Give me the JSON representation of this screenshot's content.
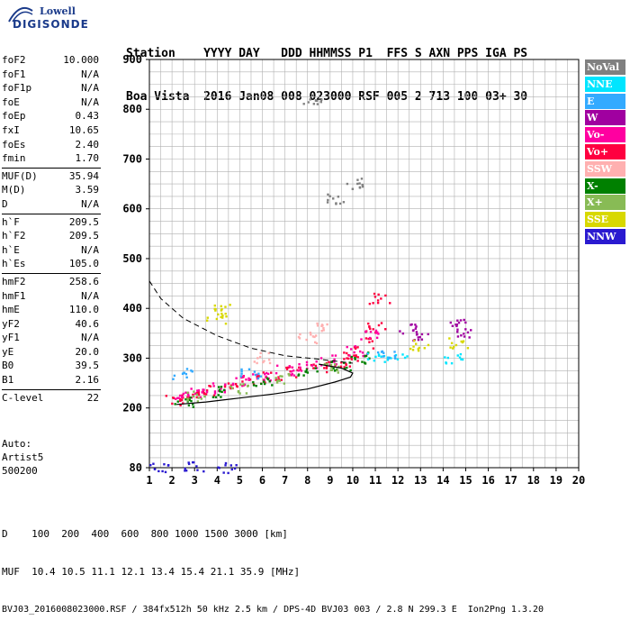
{
  "logo": {
    "line1": "Lowell",
    "line2": "DIGISONDE"
  },
  "header": {
    "labels": [
      "Station",
      "YYYY",
      "DAY",
      "DDD",
      "HHMMSS",
      "P1",
      "FFS",
      "S",
      "AXN",
      "PPS",
      "IGA",
      "PS"
    ],
    "values": [
      "Boa Vista",
      "2016",
      "Jan08",
      "008",
      "023000",
      "RSF",
      "005",
      "2",
      "713",
      "100",
      "03+",
      "30"
    ],
    "line1": "Station    YYYY DAY   DDD HHMMSS P1  FFS S AXN PPS IGA PS",
    "line2": "Boa Vista  2016 Jan08 008 023000 RSF 005 2 713 100 03+ 30"
  },
  "params": {
    "group1": [
      {
        "name": "foF2",
        "value": "10.000"
      },
      {
        "name": "foF1",
        "value": "N/A"
      },
      {
        "name": "foF1p",
        "value": "N/A"
      },
      {
        "name": "foE",
        "value": "N/A"
      },
      {
        "name": "foEp",
        "value": "0.43"
      },
      {
        "name": "fxI",
        "value": "10.65"
      },
      {
        "name": "foEs",
        "value": "2.40"
      },
      {
        "name": "fmin",
        "value": "1.70"
      }
    ],
    "group2": [
      {
        "name": "MUF(D)",
        "value": "35.94"
      },
      {
        "name": "M(D)",
        "value": "3.59"
      },
      {
        "name": "D",
        "value": "N/A"
      }
    ],
    "group3": [
      {
        "name": "h`F",
        "value": "209.5"
      },
      {
        "name": "h`F2",
        "value": "209.5"
      },
      {
        "name": "h`E",
        "value": "N/A"
      },
      {
        "name": "h`Es",
        "value": "105.0"
      }
    ],
    "group4": [
      {
        "name": "hmF2",
        "value": "258.6"
      },
      {
        "name": "hmF1",
        "value": "N/A"
      },
      {
        "name": "hmE",
        "value": "110.0"
      },
      {
        "name": "yF2",
        "value": "40.6"
      },
      {
        "name": "yF1",
        "value": "N/A"
      },
      {
        "name": "yE",
        "value": "20.0"
      },
      {
        "name": "B0",
        "value": "39.5"
      },
      {
        "name": "B1",
        "value": "2.16"
      }
    ],
    "group5": [
      {
        "name": "C-level",
        "value": "22"
      }
    ]
  },
  "auto": {
    "line1": "Auto:",
    "line2": "Artist5",
    "line3": "500200"
  },
  "bottom": {
    "line1": "D    100  200  400  600  800 1000 1500 3000 [km]",
    "line2": "MUF  10.4 10.5 11.1 12.1 13.4 15.4 21.1 35.9 [MHz]",
    "line3": "BVJ03_2016008023000.RSF / 384fx512h 50 kHz 2.5 km / DPS-4D BVJ03 003 / 2.8 N 299.3 E  Ion2Png 1.3.20"
  },
  "legend": [
    {
      "label": "NoVal",
      "color": "#808080"
    },
    {
      "label": "NNE",
      "color": "#00e5ff"
    },
    {
      "label": "E",
      "color": "#33aaff"
    },
    {
      "label": "W",
      "color": "#a000a0"
    },
    {
      "label": "Vo-",
      "color": "#ff00a0"
    },
    {
      "label": "Vo+",
      "color": "#ff0040"
    },
    {
      "label": "SSW",
      "color": "#ffb0b0"
    },
    {
      "label": "X-",
      "color": "#008000"
    },
    {
      "label": "X+",
      "color": "#88bb55"
    },
    {
      "label": "SSE",
      "color": "#d8d800"
    },
    {
      "label": "NNW",
      "color": "#2a1ad0"
    }
  ],
  "chart_data": {
    "type": "scatter",
    "xlim": [
      1,
      20
    ],
    "ylim": [
      80,
      900
    ],
    "x_ticks": [
      1,
      2,
      3,
      4,
      5,
      6,
      7,
      8,
      9,
      10,
      11,
      12,
      13,
      14,
      15,
      16,
      17,
      18,
      19,
      20
    ],
    "y_ticks": [
      80,
      200,
      300,
      400,
      500,
      600,
      700,
      800,
      900
    ],
    "grid": true,
    "legend_position": "right",
    "series": [
      {
        "name": "Vo+",
        "points": [
          [
            2.2,
            215
          ],
          [
            2.8,
            225
          ],
          [
            3.5,
            235
          ],
          [
            4.5,
            245
          ],
          [
            5.5,
            255
          ],
          [
            6.5,
            262
          ],
          [
            7.5,
            272
          ],
          [
            8.5,
            282
          ],
          [
            9.5,
            290
          ],
          [
            10,
            305
          ],
          [
            10.5,
            330
          ],
          [
            11,
            360
          ],
          [
            11.2,
            420
          ]
        ]
      },
      {
        "name": "Vo-",
        "points": [
          [
            2.3,
            220
          ],
          [
            3.0,
            230
          ],
          [
            4.0,
            240
          ],
          [
            5.0,
            255
          ],
          [
            6.0,
            265
          ],
          [
            7.0,
            275
          ],
          [
            8.0,
            285
          ],
          [
            9.0,
            295
          ],
          [
            10.2,
            315
          ],
          [
            10.8,
            345
          ]
        ]
      },
      {
        "name": "W",
        "points": [
          [
            12.5,
            360
          ],
          [
            14.6,
            370
          ],
          [
            13,
            345
          ],
          [
            15,
            350
          ]
        ]
      },
      {
        "name": "X-",
        "points": [
          [
            2.5,
            212
          ],
          [
            4,
            232
          ],
          [
            6,
            250
          ],
          [
            8,
            270
          ],
          [
            9.5,
            285
          ],
          [
            10.3,
            300
          ]
        ]
      },
      {
        "name": "X+",
        "points": [
          [
            3,
            222
          ],
          [
            5,
            240
          ],
          [
            7,
            260
          ],
          [
            9,
            278
          ]
        ]
      },
      {
        "name": "SSE",
        "points": [
          [
            4,
            380
          ],
          [
            4.3,
            400
          ],
          [
            13,
            325
          ],
          [
            14.7,
            330
          ]
        ]
      },
      {
        "name": "NNE",
        "points": [
          [
            11,
            300
          ],
          [
            12,
            300
          ],
          [
            14.5,
            300
          ]
        ]
      },
      {
        "name": "E",
        "points": [
          [
            2.5,
            268
          ],
          [
            5.5,
            270
          ],
          [
            11.5,
            310
          ]
        ]
      },
      {
        "name": "SSW",
        "points": [
          [
            6,
            300
          ],
          [
            8,
            340
          ],
          [
            8.5,
            360
          ]
        ]
      },
      {
        "name": "NNW",
        "points": [
          [
            1.5,
            80
          ],
          [
            3,
            80
          ],
          [
            4.5,
            80
          ]
        ]
      },
      {
        "name": "NoVal",
        "points": [
          [
            8.2,
            810
          ],
          [
            9.3,
            620
          ],
          [
            10,
            650
          ]
        ]
      }
    ],
    "profile_curve": [
      [
        2.2,
        207
      ],
      [
        3.5,
        212
      ],
      [
        5,
        220
      ],
      [
        6.5,
        228
      ],
      [
        8,
        238
      ],
      [
        9.2,
        252
      ],
      [
        9.9,
        262
      ],
      [
        10,
        270
      ],
      [
        9.5,
        280
      ],
      [
        8.5,
        288
      ]
    ],
    "dashed_curve": [
      [
        1,
        455
      ],
      [
        1.5,
        420
      ],
      [
        2.5,
        380
      ],
      [
        4,
        345
      ],
      [
        5.5,
        320
      ],
      [
        7,
        305
      ],
      [
        8.5,
        298
      ],
      [
        10,
        290
      ]
    ]
  }
}
